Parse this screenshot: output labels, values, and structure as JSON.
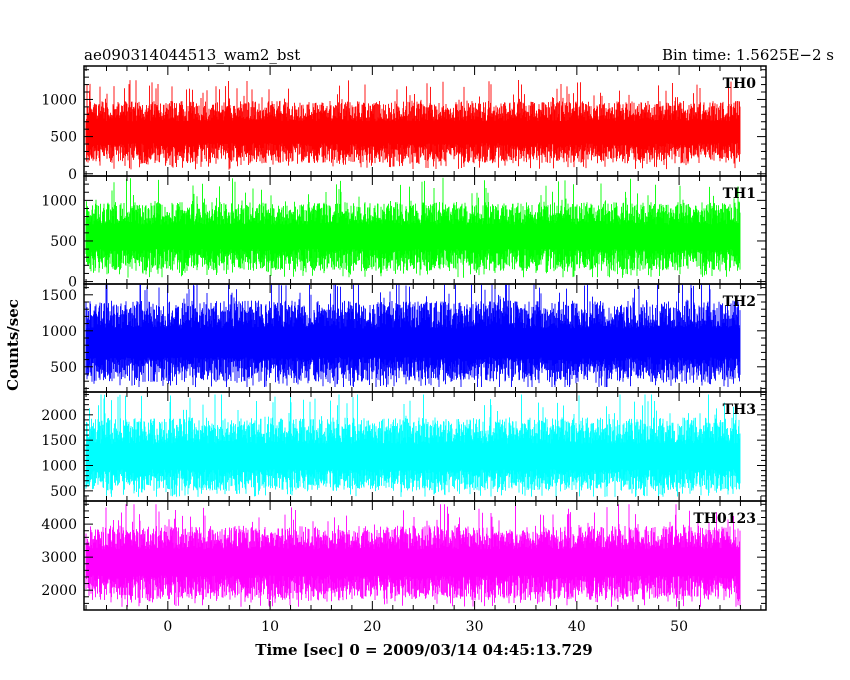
{
  "chart_data": {
    "type": "line",
    "title_left": "ae090314044513_wam2_bst",
    "title_right": "Bin time: 1.5625E−2 s",
    "xlabel": "Time [sec] 0 = 2009/03/14 04:45:13.729",
    "ylabel": "Counts/sec",
    "xlim": [
      -8.2,
      58.5
    ],
    "x_range": [
      -8.0,
      56.0
    ],
    "x_ticks": [
      0,
      10,
      20,
      30,
      40,
      50
    ],
    "grid": false,
    "panels": [
      {
        "label": "TH0",
        "color": "#ff0000",
        "ylim": [
          -30,
          1450
        ],
        "y_ticks": [
          0,
          500,
          1000
        ],
        "stats": {
          "mean": 560,
          "low_spread": 420,
          "high_spread": 420,
          "min": 50,
          "max": 1400
        }
      },
      {
        "label": "TH1",
        "color": "#00ff00",
        "ylim": [
          -30,
          1300
        ],
        "y_ticks": [
          0,
          500,
          1000
        ],
        "stats": {
          "mean": 550,
          "low_spread": 420,
          "high_spread": 430,
          "min": 40,
          "max": 1280
        }
      },
      {
        "label": "TH2",
        "color": "#0000ff",
        "ylim": [
          150,
          1650
        ],
        "y_ticks": [
          500,
          1000,
          1500
        ],
        "stats": {
          "mean": 820,
          "low_spread": 530,
          "high_spread": 600,
          "min": 220,
          "max": 1640
        }
      },
      {
        "label": "TH3",
        "color": "#00ffff",
        "ylim": [
          300,
          2450
        ],
        "y_ticks": [
          500,
          1000,
          1500,
          2000
        ],
        "stats": {
          "mean": 1150,
          "low_spread": 650,
          "high_spread": 800,
          "min": 380,
          "max": 2400
        }
      },
      {
        "label": "TH0123",
        "color": "#ff00ff",
        "ylim": [
          1400,
          4700
        ],
        "y_ticks": [
          2000,
          3000,
          4000
        ],
        "stats": {
          "mean": 2850,
          "low_spread": 1150,
          "high_spread": 1100,
          "min": 1500,
          "max": 4600
        }
      }
    ]
  }
}
